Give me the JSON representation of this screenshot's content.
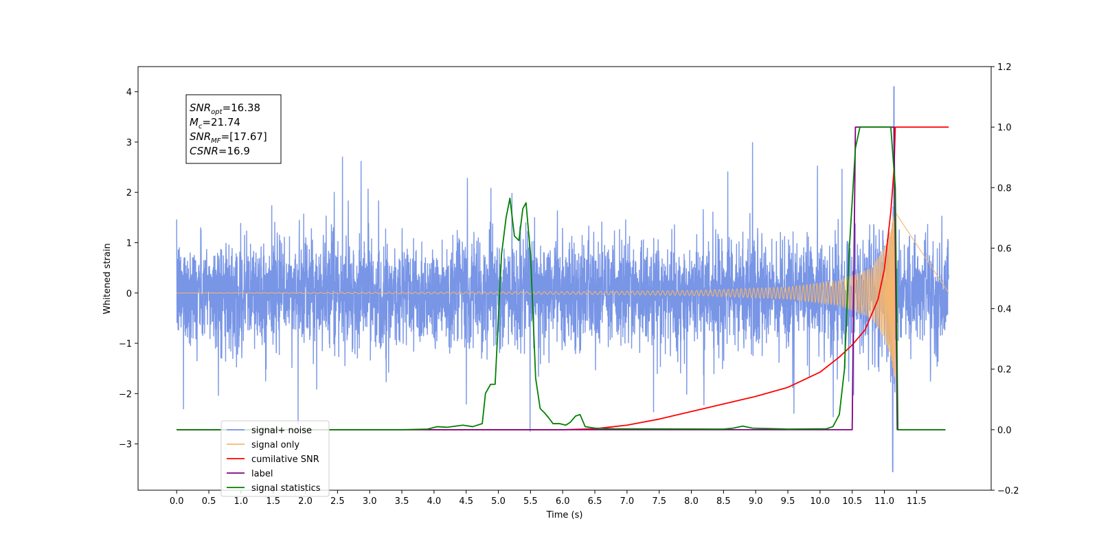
{
  "chart_data": {
    "type": "line",
    "xlabel": "Time (s)",
    "ylabel": "Whitened strain",
    "xlim": [
      -0.6,
      12.66
    ],
    "ylim": [
      -3.92,
      4.5
    ],
    "y2lim": [
      -0.2,
      1.2
    ],
    "x_ticks": [
      0.0,
      0.5,
      1.0,
      1.5,
      2.0,
      2.5,
      3.0,
      3.5,
      4.0,
      4.5,
      5.0,
      5.5,
      6.0,
      6.5,
      7.0,
      7.5,
      8.0,
      8.5,
      9.0,
      9.5,
      10.0,
      10.5,
      11.0,
      11.5
    ],
    "x_tick_labels": [
      "0.0",
      "0.5",
      "1.0",
      "1.5",
      "2.0",
      "2.5",
      "3.0",
      "3.5",
      "4.0",
      "4.5",
      "5.0",
      "5.5",
      "6.0",
      "6.5",
      "7.0",
      "7.5",
      "8.0",
      "8.5",
      "9.0",
      "9.5",
      "10.0",
      "10.5",
      "11.0",
      "11.5"
    ],
    "y_ticks": [
      -3,
      -2,
      -1,
      0,
      1,
      2,
      3,
      4
    ],
    "y_tick_labels": [
      "−3",
      "−2",
      "−1",
      "0",
      "1",
      "2",
      "3",
      "4"
    ],
    "y2_ticks": [
      -0.2,
      0.0,
      0.2,
      0.4,
      0.6,
      0.8,
      1.0,
      1.2
    ],
    "y2_tick_labels": [
      "−0.2",
      "0.0",
      "0.2",
      "0.4",
      "0.6",
      "0.8",
      "1.0",
      "1.2"
    ],
    "grid": false,
    "legend_position": "lower-left",
    "annotation": {
      "lines": [
        {
          "base": "SNR",
          "sub": "opt",
          "rest": "=16.38"
        },
        {
          "base": "M",
          "sub": "c",
          "rest": "=21.74"
        },
        {
          "base": "SNR",
          "sub": "MF",
          "rest": "=[17.67]"
        },
        {
          "base": "CSNR",
          "sub": "",
          "rest": "=16.9"
        }
      ]
    },
    "series": [
      {
        "name": "signal+ noise",
        "axis": "left",
        "color": "#7895e6",
        "style": "noisy",
        "t_range": [
          0.0,
          12.0
        ],
        "noise_std": 0.85,
        "noise_max": 4.1,
        "noise_min": -3.55
      },
      {
        "name": "signal only",
        "axis": "left",
        "color": "#f4b66e",
        "style": "chirp",
        "t_range": [
          0.0,
          11.17
        ],
        "merger_time": 11.17,
        "peak_amplitude": 1.75,
        "envelope_points": [
          [
            0.0,
            0.0
          ],
          [
            6.5,
            0.03
          ],
          [
            8.0,
            0.05
          ],
          [
            9.5,
            0.12
          ],
          [
            10.3,
            0.25
          ],
          [
            10.8,
            0.5
          ],
          [
            11.0,
            0.9
          ],
          [
            11.1,
            1.3
          ],
          [
            11.17,
            1.75
          ]
        ]
      },
      {
        "name": "cumilative SNR",
        "axis": "right",
        "color": "#ff0000",
        "points": [
          [
            0.0,
            0.0
          ],
          [
            6.0,
            0.0
          ],
          [
            6.5,
            0.003
          ],
          [
            7.0,
            0.015
          ],
          [
            7.5,
            0.035
          ],
          [
            8.0,
            0.06
          ],
          [
            8.5,
            0.085
          ],
          [
            9.0,
            0.11
          ],
          [
            9.5,
            0.14
          ],
          [
            10.0,
            0.19
          ],
          [
            10.3,
            0.24
          ],
          [
            10.5,
            0.28
          ],
          [
            10.7,
            0.33
          ],
          [
            10.9,
            0.43
          ],
          [
            11.0,
            0.53
          ],
          [
            11.1,
            0.72
          ],
          [
            11.15,
            0.86
          ],
          [
            11.17,
            1.0
          ],
          [
            12.0,
            1.0
          ]
        ]
      },
      {
        "name": "label",
        "axis": "right",
        "color": "#800080",
        "points": [
          [
            0.0,
            0.0
          ],
          [
            10.5,
            0.0
          ],
          [
            10.55,
            1.0
          ],
          [
            11.15,
            1.0
          ],
          [
            11.2,
            0.0
          ],
          [
            11.95,
            0.0
          ]
        ]
      },
      {
        "name": "signal statistics",
        "axis": "right",
        "color": "#008000",
        "points": [
          [
            0.0,
            0.0
          ],
          [
            3.5,
            0.0
          ],
          [
            3.9,
            0.002
          ],
          [
            4.05,
            0.01
          ],
          [
            4.2,
            0.008
          ],
          [
            4.45,
            0.015
          ],
          [
            4.6,
            0.01
          ],
          [
            4.75,
            0.02
          ],
          [
            4.8,
            0.12
          ],
          [
            4.88,
            0.15
          ],
          [
            4.95,
            0.15
          ],
          [
            5.05,
            0.58
          ],
          [
            5.12,
            0.7
          ],
          [
            5.18,
            0.765
          ],
          [
            5.25,
            0.64
          ],
          [
            5.32,
            0.625
          ],
          [
            5.38,
            0.73
          ],
          [
            5.43,
            0.75
          ],
          [
            5.5,
            0.58
          ],
          [
            5.58,
            0.17
          ],
          [
            5.65,
            0.07
          ],
          [
            5.72,
            0.055
          ],
          [
            5.78,
            0.04
          ],
          [
            5.85,
            0.02
          ],
          [
            5.95,
            0.02
          ],
          [
            6.05,
            0.015
          ],
          [
            6.12,
            0.025
          ],
          [
            6.2,
            0.045
          ],
          [
            6.27,
            0.05
          ],
          [
            6.35,
            0.01
          ],
          [
            6.5,
            0.005
          ],
          [
            6.8,
            0.003
          ],
          [
            8.5,
            0.002
          ],
          [
            8.65,
            0.005
          ],
          [
            8.8,
            0.012
          ],
          [
            8.95,
            0.005
          ],
          [
            9.5,
            0.002
          ],
          [
            10.1,
            0.003
          ],
          [
            10.2,
            0.01
          ],
          [
            10.3,
            0.05
          ],
          [
            10.38,
            0.2
          ],
          [
            10.45,
            0.58
          ],
          [
            10.55,
            0.93
          ],
          [
            10.62,
            1.0
          ],
          [
            11.1,
            1.0
          ],
          [
            11.17,
            0.8
          ],
          [
            11.21,
            0.0
          ],
          [
            11.95,
            0.0
          ]
        ]
      }
    ],
    "legend_entries": [
      "signal+ noise",
      "signal only",
      "cumilative SNR",
      "label",
      "signal statistics"
    ]
  }
}
